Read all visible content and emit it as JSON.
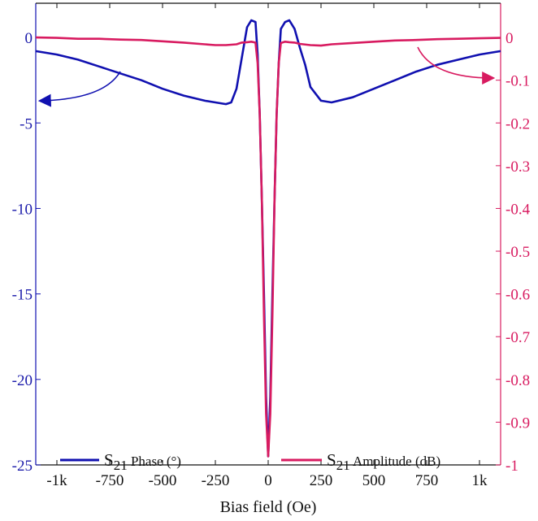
{
  "chart_data": {
    "type": "line",
    "xlabel": "Bias field (Oe)",
    "xlim": [
      -1100,
      1100
    ],
    "x_ticks": [
      -1000,
      -750,
      -500,
      -250,
      0,
      250,
      500,
      750,
      1000
    ],
    "x_tick_labels": [
      "-1k",
      "-750",
      "-500",
      "-250",
      "0",
      "250",
      "500",
      "750",
      "1k"
    ],
    "y_left": {
      "lim": [
        -25,
        2
      ],
      "ticks": [
        0,
        -5,
        -10,
        -15,
        -20,
        -25
      ],
      "tick_labels": [
        "0",
        "-5",
        "-10",
        "-15",
        "-20",
        "-25"
      ],
      "color": "#1a1aaa"
    },
    "y_right": {
      "lim": [
        -1,
        0.08
      ],
      "ticks": [
        0,
        -0.1,
        -0.2,
        -0.3,
        -0.4,
        -0.5,
        -0.6,
        -0.7,
        -0.8,
        -0.9,
        -1
      ],
      "tick_labels": [
        "0",
        "-0.1",
        "-0.2",
        "-0.3",
        "-0.4",
        "-0.5",
        "-0.6",
        "-0.7",
        "-0.8",
        "-0.9",
        "-1"
      ],
      "color": "#d81b60"
    },
    "legend_placement": "bottom",
    "series": [
      {
        "name_main": "S",
        "name_sub": "21",
        "name_rest": " Phase (°)",
        "axis": "left",
        "color": "#1010b0",
        "x": [
          -1100,
          -1000,
          -900,
          -800,
          -700,
          -600,
          -500,
          -400,
          -300,
          -250,
          -200,
          -175,
          -150,
          -125,
          -100,
          -80,
          -60,
          -50,
          -40,
          -30,
          -20,
          -10,
          0,
          10,
          20,
          30,
          40,
          50,
          60,
          80,
          100,
          125,
          150,
          175,
          200,
          250,
          300,
          400,
          500,
          600,
          700,
          800,
          900,
          1000,
          1100
        ],
        "y": [
          -0.8,
          -1.0,
          -1.3,
          -1.7,
          -2.1,
          -2.5,
          -3.0,
          -3.4,
          -3.7,
          -3.8,
          -3.9,
          -3.8,
          -3.0,
          -1.2,
          0.6,
          1.0,
          0.9,
          -1.0,
          -4.5,
          -9.5,
          -15.0,
          -21.0,
          -24.5,
          -21.0,
          -15.0,
          -9.5,
          -4.5,
          -1.5,
          0.5,
          0.9,
          1.0,
          0.5,
          -0.6,
          -1.6,
          -2.9,
          -3.7,
          -3.8,
          -3.5,
          -3.0,
          -2.5,
          -2.0,
          -1.6,
          -1.3,
          -1.0,
          -0.8
        ]
      },
      {
        "name_main": "S",
        "name_sub": "21",
        "name_rest": " Amplitude (dB)",
        "axis": "right",
        "color": "#d81b60",
        "x": [
          -1100,
          -1000,
          -900,
          -800,
          -700,
          -600,
          -500,
          -400,
          -300,
          -250,
          -200,
          -150,
          -125,
          -100,
          -80,
          -60,
          -50,
          -40,
          -30,
          -20,
          -10,
          0,
          10,
          20,
          30,
          40,
          50,
          60,
          80,
          100,
          125,
          150,
          200,
          250,
          300,
          400,
          500,
          600,
          700,
          800,
          900,
          1000,
          1100
        ],
        "y": [
          0,
          -0.001,
          -0.003,
          -0.003,
          -0.005,
          -0.006,
          -0.009,
          -0.012,
          -0.016,
          -0.018,
          -0.018,
          -0.016,
          -0.012,
          -0.011,
          -0.01,
          -0.012,
          -0.06,
          -0.18,
          -0.38,
          -0.65,
          -0.88,
          -0.98,
          -0.88,
          -0.65,
          -0.38,
          -0.18,
          -0.06,
          -0.013,
          -0.01,
          -0.011,
          -0.012,
          -0.015,
          -0.018,
          -0.019,
          -0.016,
          -0.013,
          -0.01,
          -0.007,
          -0.006,
          -0.004,
          -0.003,
          -0.002,
          -0.001
        ]
      }
    ]
  }
}
